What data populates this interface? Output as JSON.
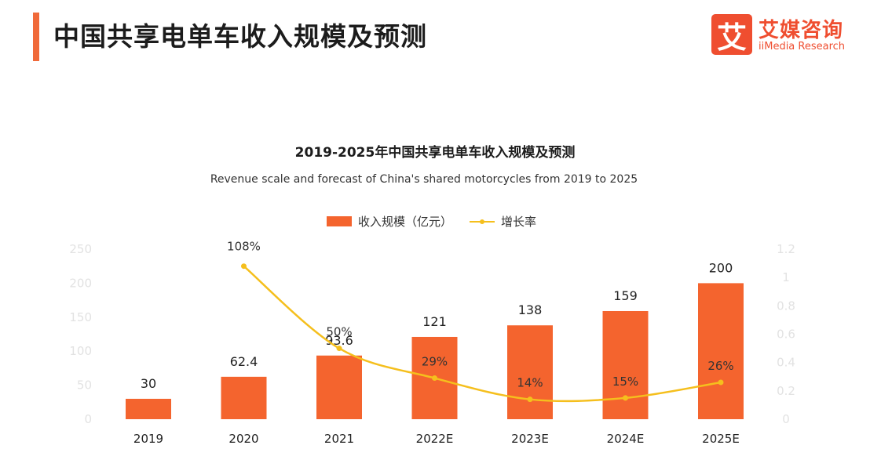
{
  "header": {
    "title": "中国共享电单车收入规模及预测"
  },
  "logo": {
    "mark_glyph": "艾",
    "name_cn": "艾媒咨询",
    "name_en": "iiMedia Research",
    "color": "#ef4e30"
  },
  "colors": {
    "accent": "#f06a3a",
    "bar": "#f4642e",
    "line": "#f5bf1d"
  },
  "chart_data": {
    "type": "bar",
    "title": "2019-2025年中国共享电单车收入规模及预测",
    "subtitle": "Revenue scale and forecast of China's shared motorcycles from 2019 to 2025",
    "categories": [
      "2019",
      "2020",
      "2021",
      "2022E",
      "2023E",
      "2024E",
      "2025E"
    ],
    "series": [
      {
        "name": "收入规模（亿元）",
        "type": "bar",
        "axis": "left",
        "values": [
          30,
          62.4,
          93.6,
          121,
          138,
          159,
          200
        ],
        "labels": [
          "30",
          "62.4",
          "93.6",
          "121",
          "138",
          "159",
          "200"
        ]
      },
      {
        "name": "增长率",
        "type": "line",
        "axis": "right",
        "values": [
          null,
          1.08,
          0.5,
          0.29,
          0.14,
          0.15,
          0.26
        ],
        "labels": [
          "",
          "108%",
          "50%",
          "29%",
          "14%",
          "15%",
          "26%"
        ]
      }
    ],
    "y_left": {
      "ylim": [
        0,
        250
      ],
      "ticks": [
        "0",
        "50",
        "100",
        "150",
        "200",
        "250"
      ]
    },
    "y_right": {
      "ylim": [
        0,
        1.2
      ],
      "ticks": [
        "0",
        "0.2",
        "0.4",
        "0.6",
        "0.8",
        "1",
        "1.2"
      ]
    },
    "legend": {
      "position": "top-center"
    },
    "grid": false
  }
}
